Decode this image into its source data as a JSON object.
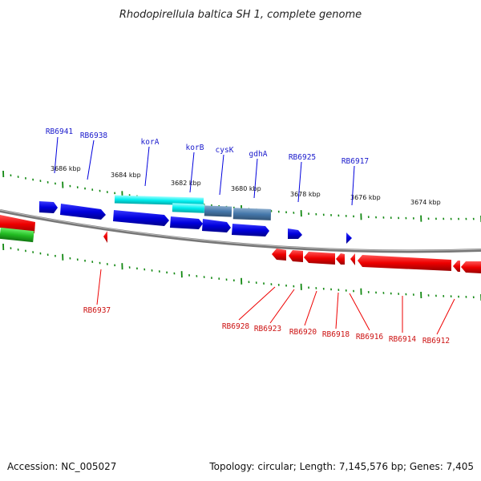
{
  "title": "Rhodopirellula baltica SH 1, complete genome",
  "footer": {
    "accession": "Accession: NC_005027",
    "summary": "Topology: circular; Length: 7,145,576 bp; Genes: 7,405"
  },
  "ruler_labels": [
    "3686 kbp",
    "3684 kbp",
    "3682 kbp",
    "3680 kbp",
    "3678 kbp",
    "3676 kbp",
    "3674 kbp"
  ],
  "forward_gene_labels": [
    "RB6941",
    "RB6938",
    "korA",
    "korB",
    "cysK",
    "gdhA",
    "RB6925",
    "RB6917"
  ],
  "reverse_gene_labels": [
    "RB6937",
    "RB6928",
    "RB6923",
    "RB6920",
    "RB6918",
    "RB6916",
    "RB6914",
    "RB6912"
  ],
  "colors": {
    "forward_gene": "#0000dd",
    "forward_label": "#1a1acc",
    "reverse_gene": "#ee0000",
    "reverse_label": "#cc1111",
    "other_feature": "#22bb22",
    "highlight_cyan": "#00eeee",
    "highlight_steel": "#4477aa",
    "tick": "#118811",
    "backbone": "#888888"
  }
}
